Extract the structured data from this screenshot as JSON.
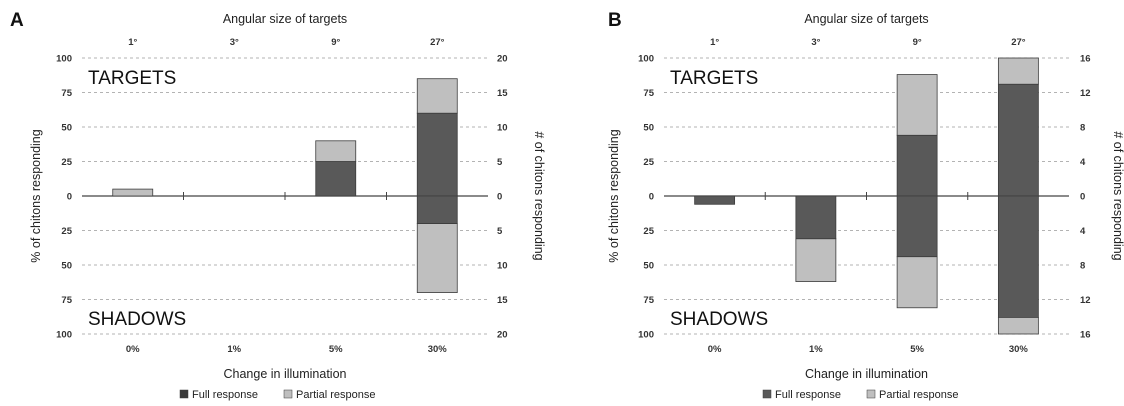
{
  "colors": {
    "full": "#595959",
    "partial": "#bfbfbf",
    "bar_stroke": "#3c3c3c",
    "zero_line": "#444444",
    "grid": "#9a9a9a"
  },
  "chart_data": [
    {
      "type": "bar",
      "panel_label": "A",
      "top_axis_title": "Angular size of targets",
      "top_tick_labels": [
        "1°",
        "3°",
        "9°",
        "27°"
      ],
      "bottom_axis_title": "Change in illumination",
      "bottom_tick_labels": [
        "0%",
        "1%",
        "5%",
        "30%"
      ],
      "ylabel_left": "% of chitons responding",
      "ylabel_right": "# of chitons responding",
      "ylim": [
        -100,
        100
      ],
      "left_ticks_upper": [
        "100",
        "75",
        "50",
        "25",
        "0"
      ],
      "left_ticks_lower": [
        "25",
        "50",
        "75",
        "100"
      ],
      "right_ticks_upper": [
        "20",
        "15",
        "10",
        "5",
        "0"
      ],
      "right_ticks_lower": [
        "5",
        "10",
        "15",
        "20"
      ],
      "upper_region_label": "TARGETS",
      "lower_region_label": "SHADOWS",
      "grid": "dashed",
      "legend": {
        "position": "bottom",
        "entries": [
          {
            "key": "full",
            "label": "Full response"
          },
          {
            "key": "partial",
            "label": "Partial response"
          }
        ]
      },
      "series": [
        {
          "name": "Full response",
          "key": "full",
          "targets": [
            0,
            0,
            25,
            60
          ],
          "shadows": [
            0,
            0,
            0,
            20
          ]
        },
        {
          "name": "Partial response",
          "key": "partial",
          "targets": [
            5,
            0,
            15,
            25
          ],
          "shadows": [
            0,
            0,
            0,
            50
          ]
        }
      ]
    },
    {
      "type": "bar",
      "panel_label": "B",
      "top_axis_title": "Angular size of targets",
      "top_tick_labels": [
        "1°",
        "3°",
        "9°",
        "27°"
      ],
      "bottom_axis_title": "Change in illumination",
      "bottom_tick_labels": [
        "0%",
        "1%",
        "5%",
        "30%"
      ],
      "ylabel_left": "% of chitons responding",
      "ylabel_right": "# of chitons responding",
      "ylim": [
        -100,
        100
      ],
      "left_ticks_upper": [
        "100",
        "75",
        "50",
        "25",
        "0"
      ],
      "left_ticks_lower": [
        "25",
        "50",
        "75",
        "100"
      ],
      "right_ticks_upper": [
        "16",
        "12",
        "8",
        "4",
        "0"
      ],
      "right_ticks_lower": [
        "4",
        "8",
        "12",
        "16"
      ],
      "upper_region_label": "TARGETS",
      "lower_region_label": "SHADOWS",
      "grid": "dashed",
      "legend": {
        "position": "bottom",
        "entries": [
          {
            "key": "full",
            "label": "Full response"
          },
          {
            "key": "partial",
            "label": "Partial response"
          }
        ]
      },
      "series": [
        {
          "name": "Full response",
          "key": "full",
          "targets": [
            0,
            0,
            44,
            81
          ],
          "shadows": [
            6,
            31,
            44,
            88
          ]
        },
        {
          "name": "Partial response",
          "key": "partial",
          "targets": [
            0,
            0,
            44,
            19
          ],
          "shadows": [
            0,
            31,
            37,
            12
          ]
        }
      ]
    }
  ]
}
